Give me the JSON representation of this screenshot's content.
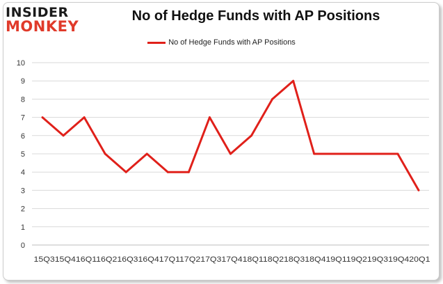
{
  "brand": {
    "line1": "INSIDER",
    "line2": "MONKEY"
  },
  "chart_data": {
    "type": "line",
    "title": "No of Hedge Funds with AP Positions",
    "categories": [
      "2015Q3",
      "2015Q4",
      "2016Q1",
      "2016Q2",
      "2016Q3",
      "2016Q4",
      "2017Q1",
      "2017Q2",
      "2017Q3",
      "2017Q4",
      "2018Q1",
      "2018Q2",
      "2018Q3",
      "2018Q4",
      "2019Q1",
      "2019Q2",
      "2019Q3",
      "2019Q4",
      "2020Q1"
    ],
    "x_tick_text": "15Q315Q416Q116Q216Q316Q417Q117Q217Q317Q418Q118Q218Q318Q419Q119Q219Q319Q420Q1",
    "series": [
      {
        "name": "No of Hedge Funds with AP Positions",
        "color": "#e0201a",
        "values": [
          7,
          6,
          7,
          5,
          4,
          5,
          4,
          4,
          7,
          5,
          6,
          8,
          9,
          5,
          5,
          5,
          5,
          5,
          3
        ]
      }
    ],
    "ylim": [
      0,
      10
    ],
    "yticks": [
      0,
      1,
      2,
      3,
      4,
      5,
      6,
      7,
      8,
      9,
      10
    ],
    "grid": true,
    "legend": "top"
  }
}
